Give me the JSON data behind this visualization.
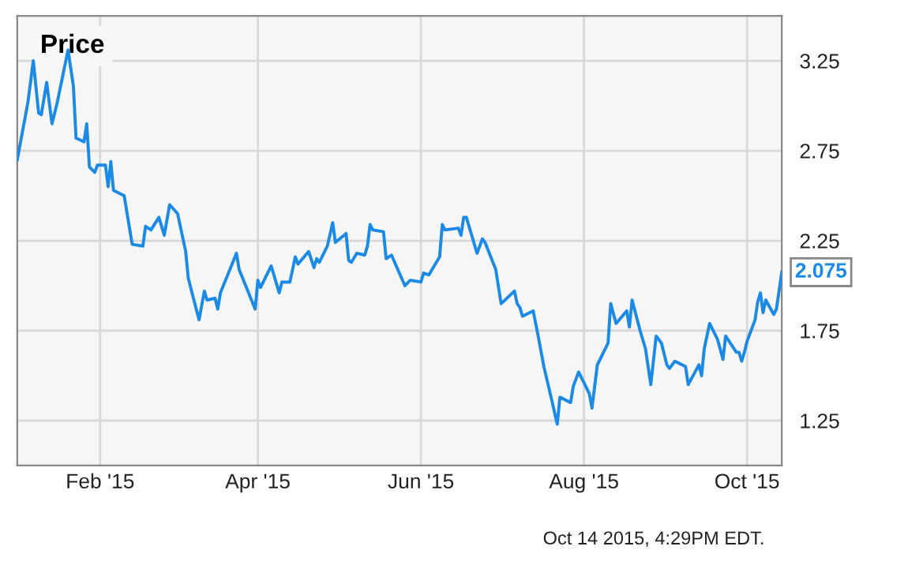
{
  "chart_data": {
    "type": "line",
    "title": "Price",
    "x": [
      "2015-01-01",
      "2015-01-05",
      "2015-01-07",
      "2015-01-09",
      "2015-01-10",
      "2015-01-12",
      "2015-01-14",
      "2015-01-16",
      "2015-01-20",
      "2015-01-22",
      "2015-01-23",
      "2015-01-26",
      "2015-01-27",
      "2015-01-28",
      "2015-01-30",
      "2015-01-31",
      "2015-02-03",
      "2015-02-04",
      "2015-02-05",
      "2015-02-06",
      "2015-02-10",
      "2015-02-13",
      "2015-02-17",
      "2015-02-18",
      "2015-02-20",
      "2015-02-23",
      "2015-02-25",
      "2015-02-27",
      "2015-03-02",
      "2015-03-05",
      "2015-03-06",
      "2015-03-10",
      "2015-03-12",
      "2015-03-13",
      "2015-03-16",
      "2015-03-17",
      "2015-03-18",
      "2015-03-24",
      "2015-03-25",
      "2015-03-31",
      "2015-04-01",
      "2015-04-02",
      "2015-04-06",
      "2015-04-09",
      "2015-04-10",
      "2015-04-13",
      "2015-04-15",
      "2015-04-16",
      "2015-04-20",
      "2015-04-22",
      "2015-04-23",
      "2015-04-24",
      "2015-04-27",
      "2015-04-29",
      "2015-04-30",
      "2015-05-04",
      "2015-05-05",
      "2015-05-06",
      "2015-05-08",
      "2015-05-11",
      "2015-05-12",
      "2015-05-13",
      "2015-05-14",
      "2015-05-18",
      "2015-05-19",
      "2015-05-21",
      "2015-05-26",
      "2015-05-28",
      "2015-06-01",
      "2015-06-02",
      "2015-06-04",
      "2015-06-08",
      "2015-06-09",
      "2015-06-10",
      "2015-06-15",
      "2015-06-16",
      "2015-06-17",
      "2015-06-18",
      "2015-06-22",
      "2015-06-24",
      "2015-06-25",
      "2015-06-29",
      "2015-07-01",
      "2015-07-06",
      "2015-07-07",
      "2015-07-08",
      "2015-07-09",
      "2015-07-13",
      "2015-07-15",
      "2015-07-17",
      "2015-07-20",
      "2015-07-22",
      "2015-07-23",
      "2015-07-27",
      "2015-07-28",
      "2015-07-30",
      "2015-08-02",
      "2015-08-03",
      "2015-08-04",
      "2015-08-06",
      "2015-08-10",
      "2015-08-11",
      "2015-08-13",
      "2015-08-17",
      "2015-08-18",
      "2015-08-19",
      "2015-08-22",
      "2015-08-24",
      "2015-08-26",
      "2015-08-28",
      "2015-08-30",
      "2015-09-01",
      "2015-09-02",
      "2015-09-04",
      "2015-09-08",
      "2015-09-09",
      "2015-09-13",
      "2015-09-14",
      "2015-09-15",
      "2015-09-17",
      "2015-09-20",
      "2015-09-22",
      "2015-09-23",
      "2015-09-27",
      "2015-09-28",
      "2015-09-29",
      "2015-09-30",
      "2015-10-01",
      "2015-10-04",
      "2015-10-05",
      "2015-10-06",
      "2015-10-07",
      "2015-10-08",
      "2015-10-11",
      "2015-10-12",
      "2015-10-14"
    ],
    "series": [
      {
        "color": "#1a8ae6",
        "values": [
          2.7,
          3.02,
          3.25,
          2.96,
          2.95,
          3.13,
          2.9,
          3.02,
          3.31,
          3.11,
          2.82,
          2.8,
          2.9,
          2.66,
          2.63,
          2.67,
          2.67,
          2.55,
          2.69,
          2.53,
          2.5,
          2.23,
          2.22,
          2.33,
          2.31,
          2.38,
          2.28,
          2.45,
          2.4,
          2.19,
          2.04,
          1.81,
          1.97,
          1.92,
          1.93,
          1.87,
          1.96,
          2.18,
          2.09,
          1.87,
          2.03,
          1.99,
          2.11,
          1.96,
          2.02,
          2.02,
          2.16,
          2.12,
          2.19,
          2.1,
          2.15,
          2.13,
          2.22,
          2.35,
          2.24,
          2.29,
          2.14,
          2.13,
          2.18,
          2.17,
          2.22,
          2.34,
          2.31,
          2.3,
          2.15,
          2.17,
          2.0,
          2.03,
          2.02,
          2.07,
          2.06,
          2.16,
          2.34,
          2.31,
          2.32,
          2.28,
          2.38,
          2.38,
          2.18,
          2.26,
          2.24,
          2.09,
          1.9,
          1.97,
          1.9,
          1.88,
          1.83,
          1.86,
          1.71,
          1.55,
          1.36,
          1.23,
          1.38,
          1.35,
          1.44,
          1.52,
          1.43,
          1.4,
          1.32,
          1.56,
          1.68,
          1.9,
          1.79,
          1.86,
          1.77,
          1.92,
          1.75,
          1.65,
          1.45,
          1.72,
          1.68,
          1.56,
          1.54,
          1.58,
          1.55,
          1.45,
          1.56,
          1.5,
          1.65,
          1.79,
          1.7,
          1.59,
          1.72,
          1.63,
          1.63,
          1.58,
          1.63,
          1.69,
          1.81,
          1.91,
          1.96,
          1.85,
          1.92,
          1.84,
          1.87,
          2.075
        ]
      }
    ],
    "xlim": [
      "2015-01-01",
      "2015-10-14"
    ],
    "xticks": [
      {
        "value": "2015-02-01",
        "label": "Feb '15"
      },
      {
        "value": "2015-04-01",
        "label": "Apr '15"
      },
      {
        "value": "2015-06-01",
        "label": "Jun '15"
      },
      {
        "value": "2015-08-01",
        "label": "Aug '15"
      },
      {
        "value": "2015-10-01",
        "label": "Oct '15"
      }
    ],
    "ylim": [
      1.0,
      3.5
    ],
    "yticks": [
      1.25,
      1.75,
      2.25,
      2.75,
      3.25
    ],
    "grid": true,
    "annotations": [
      {
        "text": "2.075",
        "x": "2015-10-14",
        "y": 2.075
      },
      "Oct 14 2015, 4:29PM EDT."
    ]
  }
}
